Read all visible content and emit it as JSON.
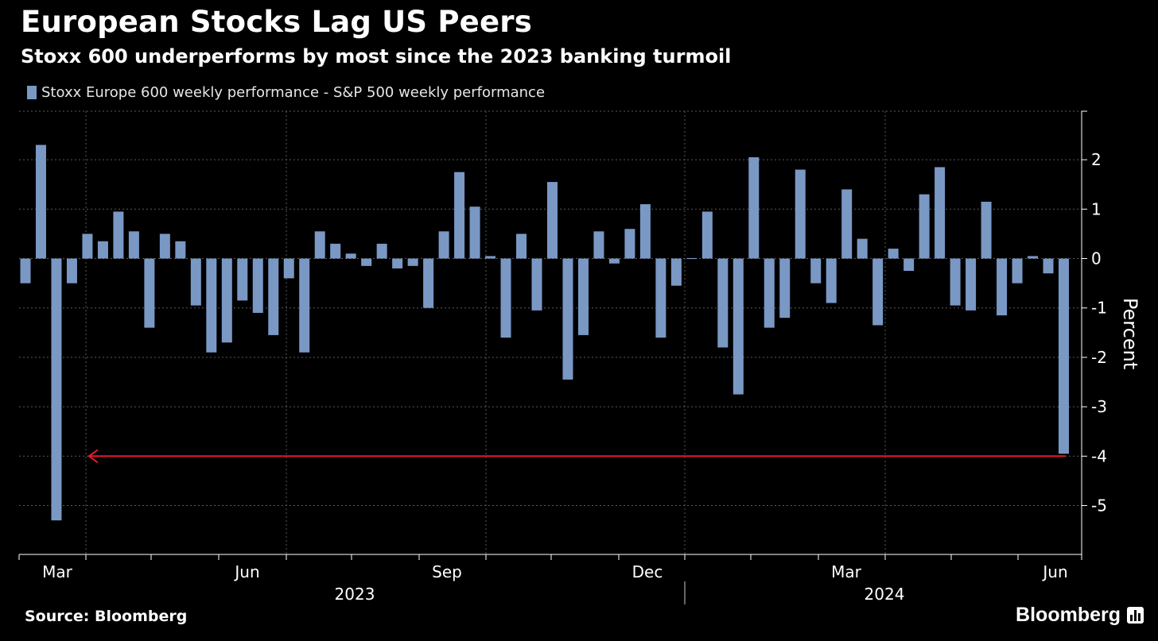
{
  "header": {
    "title": "European Stocks Lag US Peers",
    "subtitle": "Stoxx 600 underperforms by most since the 2023 banking turmoil"
  },
  "footer": {
    "source": "Source: Bloomberg",
    "brand": "Bloomberg",
    "brand_icon": "bar-chart-icon"
  },
  "colors": {
    "background": "#000000",
    "bar": "#7a98c4",
    "annotation_arrow": "#e8192c",
    "grid": "#5a5a5a",
    "text": "#ffffff"
  },
  "chart_data": {
    "type": "bar",
    "legend": [
      "Stoxx Europe 600 weekly performance - S&P 500 weekly performance"
    ],
    "ylabel": "Percent",
    "ylim": [
      -6,
      3
    ],
    "yticks": [
      2,
      1,
      0,
      -1,
      -2,
      -3,
      -4,
      -5
    ],
    "ytick_labels": [
      "2",
      "1",
      "0",
      "-1",
      "-2",
      "-3",
      "-4",
      "-5"
    ],
    "y_axis_position": "right",
    "grid": true,
    "x_month_labels": [
      "Mar",
      "Jun",
      "Sep",
      "Dec",
      "Mar",
      "Jun"
    ],
    "x_year_labels": [
      "2023",
      "2024"
    ],
    "annotation": {
      "type": "arrow",
      "direction": "left",
      "y": -4,
      "from_week_index": 67,
      "to_week_index": 4
    },
    "series": [
      {
        "values": [
          -0.5,
          2.3,
          -5.3,
          -0.5,
          0.5,
          0.35,
          0.95,
          0.55,
          -1.4,
          0.5,
          0.35,
          -0.95,
          -1.9,
          -1.7,
          -0.85,
          -1.1,
          -1.55,
          -0.4,
          -1.9,
          0.55,
          0.3,
          0.1,
          -0.15,
          0.3,
          -0.2,
          -0.15,
          -1.0,
          0.55,
          1.75,
          1.05,
          0.05,
          -1.6,
          0.5,
          -1.05,
          1.55,
          -2.45,
          -1.55,
          0.55,
          -0.1,
          0.6,
          1.1,
          -1.6,
          -0.55,
          0.0,
          0.95,
          -1.8,
          -2.75,
          2.05,
          -1.4,
          -1.2,
          1.8,
          -0.5,
          -0.9,
          1.4,
          0.4,
          -1.35,
          0.2,
          -0.25,
          1.3,
          1.85,
          -0.95,
          -1.05,
          1.15,
          -1.15,
          -0.5,
          0.05,
          -0.3,
          -3.95
        ]
      }
    ]
  }
}
